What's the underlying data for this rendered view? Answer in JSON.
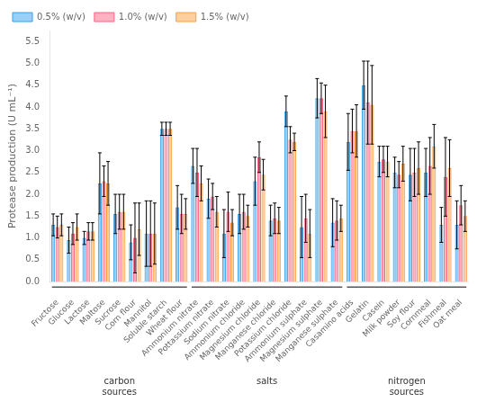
{
  "chart_data": {
    "type": "bar",
    "categories": [
      "Fructose",
      "Glucose",
      "Lactose",
      "Maltose",
      "Sucrose",
      "Corn flour",
      "Mannitol",
      "Soluble starch",
      "Wheat flour",
      "Ammonium nitrate",
      "Pottassium nitrate",
      "Sodium nitrate",
      "Ammonium chloride",
      "Magnesium chloride",
      "Manganese chloride",
      "Potassium chloride",
      "Ammonium sulphate",
      "Magnesium sulphate",
      "Manganese sulphate",
      "Casamino acids",
      "Gelatin",
      "Casein",
      "Milk powder",
      "Soy flour",
      "Cornmeal",
      "Fishmeal",
      "Oat meal"
    ],
    "series": [
      {
        "name": "0.5% (w/v)",
        "values": [
          1.3,
          0.95,
          1.0,
          2.25,
          1.55,
          0.9,
          1.1,
          3.5,
          1.7,
          2.65,
          1.9,
          1.1,
          1.55,
          2.3,
          1.4,
          3.9,
          1.25,
          4.2,
          1.35,
          3.2,
          4.5,
          2.75,
          2.5,
          2.45,
          2.5,
          1.3,
          1.3
        ],
        "errors": [
          0.25,
          0.3,
          0.15,
          0.7,
          0.45,
          0.4,
          0.75,
          0.15,
          0.5,
          0.4,
          0.45,
          0.55,
          0.45,
          0.55,
          0.35,
          0.35,
          0.7,
          0.45,
          0.55,
          0.65,
          0.55,
          0.35,
          0.35,
          0.6,
          0.55,
          0.4,
          0.55
        ]
      },
      {
        "name": "1.0% (w/v)",
        "values": [
          1.25,
          1.1,
          1.15,
          2.3,
          1.6,
          1.0,
          1.1,
          3.5,
          1.55,
          2.5,
          1.95,
          1.6,
          1.6,
          2.85,
          1.45,
          3.25,
          1.45,
          4.2,
          1.4,
          3.45,
          4.1,
          2.8,
          2.45,
          2.5,
          2.65,
          2.4,
          1.75
        ],
        "errors": [
          0.25,
          0.25,
          0.2,
          0.35,
          0.4,
          0.8,
          0.75,
          0.15,
          0.45,
          0.55,
          0.3,
          0.45,
          0.4,
          0.35,
          0.35,
          0.3,
          0.55,
          0.35,
          0.45,
          0.5,
          0.95,
          0.3,
          0.3,
          0.55,
          0.65,
          0.9,
          0.45
        ]
      },
      {
        "name": "1.5% (w/v)",
        "values": [
          1.3,
          1.25,
          1.15,
          2.25,
          1.6,
          1.2,
          1.1,
          3.5,
          1.55,
          2.25,
          1.6,
          1.35,
          1.5,
          2.45,
          1.4,
          3.2,
          1.1,
          3.9,
          1.45,
          3.45,
          4.05,
          2.75,
          2.7,
          2.6,
          3.1,
          2.6,
          1.5
        ],
        "errors": [
          0.25,
          0.3,
          0.2,
          0.5,
          0.4,
          0.6,
          0.7,
          0.15,
          0.35,
          0.4,
          0.35,
          0.3,
          0.25,
          0.35,
          0.3,
          0.2,
          0.55,
          0.6,
          0.3,
          0.6,
          0.9,
          0.35,
          0.4,
          0.6,
          0.5,
          0.65,
          0.35
        ]
      }
    ],
    "ylabel": "Protease production (U mL⁻¹)",
    "ylim": [
      0,
      5.75
    ],
    "yticks": [
      {
        "value": 0,
        "label": "0.0"
      },
      0.5,
      {
        "value": 1,
        "label": "1.0"
      },
      1.5,
      {
        "value": 2,
        "label": "2.0"
      },
      2.5,
      {
        "value": 3,
        "label": "3.0"
      },
      3.5,
      {
        "value": 4,
        "label": "4.0"
      },
      4.5,
      {
        "value": 5,
        "label": "5.0"
      },
      5.5
    ],
    "grid": false,
    "legend": "upper left",
    "groups": [
      {
        "label": "carbon\nsources",
        "start": "Fructose",
        "end": "Wheat flour"
      },
      {
        "label": "salts",
        "start": "Ammonium nitrate",
        "end": "Manganese sulphate"
      },
      {
        "label": "nitrogen\nsources",
        "start": "Casamino acids",
        "end": "Oat meal"
      }
    ]
  }
}
